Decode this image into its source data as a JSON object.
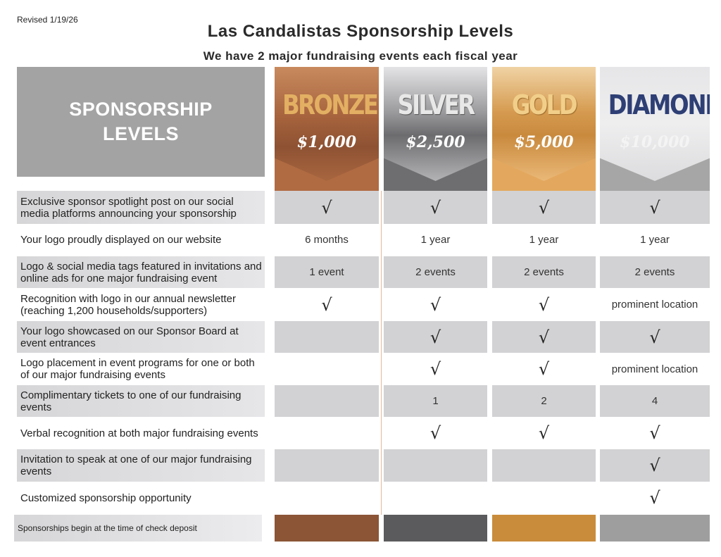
{
  "revised": "Revised 1/19/26",
  "title": "Las Candalistas Sponsorship Levels",
  "subtitle": "We have 2 major fundraising events each fiscal year",
  "levels_heading": [
    "SPONSORSHIP",
    "LEVELS"
  ],
  "tiers": [
    {
      "name": "BRONZE",
      "price": "$1,000",
      "color": "#8b5536"
    },
    {
      "name": "SILVER",
      "price": "$2,500",
      "color": "#5b5b5d"
    },
    {
      "name": "GOLD",
      "price": "$5,000",
      "color": "#c98c3b"
    },
    {
      "name": "DIAMOND",
      "price": "$10,000",
      "color": "#9e9e9e"
    }
  ],
  "rows": [
    {
      "label": "Exclusive sponsor spotlight post on our social media platforms announcing your sponsorship",
      "values": [
        "√",
        "√",
        "√",
        "√"
      ]
    },
    {
      "label": "Your logo proudly displayed on our website",
      "values": [
        "6 months",
        "1 year",
        "1 year",
        "1 year"
      ]
    },
    {
      "label": "Logo & social media tags featured in invitations and online ads for one major fundraising event",
      "values": [
        "1 event",
        "2 events",
        "2 events",
        "2 events"
      ]
    },
    {
      "label": "Recognition with logo in our annual newsletter (reaching 1,200 households/supporters)",
      "values": [
        "√",
        "√",
        "√",
        "prominent location"
      ]
    },
    {
      "label": "Your logo showcased on our Sponsor Board at event entrances",
      "values": [
        "",
        "√",
        "√",
        "√"
      ]
    },
    {
      "label": "Logo placement in event programs for one or both of our major fundraising events",
      "values": [
        "",
        "√",
        "√",
        "prominent location"
      ]
    },
    {
      "label": "Complimentary tickets to one of our fundraising events",
      "values": [
        "",
        "1",
        "2",
        "4"
      ]
    },
    {
      "label": "Verbal recognition at both major fundraising events",
      "values": [
        "",
        "√",
        "√",
        "√"
      ]
    },
    {
      "label": "Invitation to speak at one of our major fundraising events",
      "values": [
        "",
        "",
        "",
        "√"
      ]
    },
    {
      "label": "Customized sponsorship opportunity",
      "values": [
        "",
        "",
        "",
        "√"
      ]
    }
  ],
  "footer": "Sponsorships begin at the time of check deposit"
}
